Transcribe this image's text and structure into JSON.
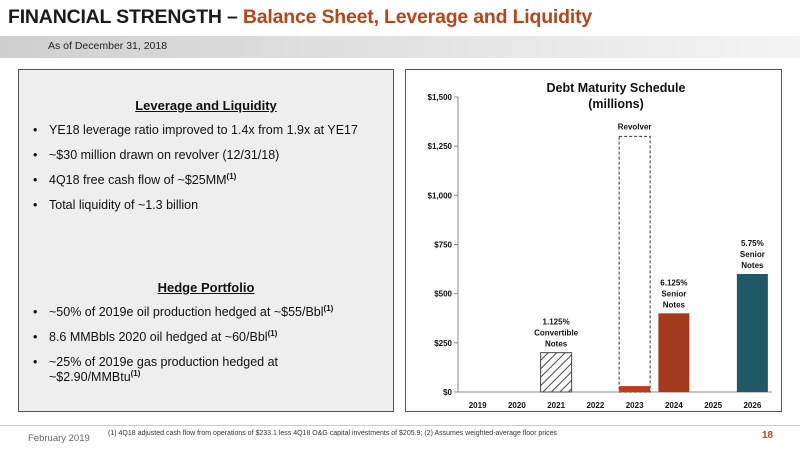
{
  "header": {
    "title_main": "FINANCIAL STRENGTH",
    "title_sep": "–",
    "title_accent": "Balance Sheet, Leverage and Liquidity",
    "as_of": "As of December 31, 2018"
  },
  "leverage": {
    "heading": "Leverage and Liquidity",
    "bullets": [
      {
        "text": "YE18 leverage ratio improved to 1.4x from 1.9x at YE17",
        "note": ""
      },
      {
        "text": "~$30 million drawn on revolver (12/31/18)",
        "note": ""
      },
      {
        "text": "4Q18 free cash flow of ~$25MM",
        "note": "(1)"
      },
      {
        "text": "Total liquidity of ~1.3 billion",
        "note": ""
      }
    ]
  },
  "hedge": {
    "heading": "Hedge Portfolio",
    "bullets": [
      {
        "text": "~50% of 2019e oil production hedged at ~$55/Bbl",
        "note": "(1)"
      },
      {
        "text": "8.6 MMBbls 2020 oil hedged at ~60/Bbl",
        "note": "(1)"
      },
      {
        "text": "~25% of 2019e gas production hedged at ~$2.90/MMBtu",
        "note": "(1)"
      }
    ]
  },
  "chart_data": {
    "type": "bar",
    "title": "Debt Maturity Schedule",
    "subtitle": "(millions)",
    "categories": [
      "2019",
      "2020",
      "2021",
      "2022",
      "2023",
      "2024",
      "2025",
      "2026"
    ],
    "ylim": [
      0,
      1500
    ],
    "yticks": [
      0,
      250,
      500,
      750,
      1000,
      1250,
      1500
    ],
    "ytick_labels": [
      "$0",
      "$250",
      "$500",
      "$750",
      "$1,000",
      "$1,250",
      "$1,500"
    ],
    "grid": false,
    "bars": [
      {
        "category": "2021",
        "value": 200,
        "label": [
          "1.125%",
          "Convertible",
          "Notes"
        ],
        "color": "#ffffff",
        "pattern": "hatch"
      },
      {
        "category": "2023",
        "value": 30,
        "label": [],
        "color": "#c0391b",
        "pattern": "solid"
      },
      {
        "category": "2024",
        "value": 400,
        "label": [
          "6.125%",
          "Senior",
          "Notes"
        ],
        "color": "#a33a1c",
        "pattern": "solid"
      },
      {
        "category": "2026",
        "value": 600,
        "label": [
          "5.75%",
          "Senior",
          "Notes"
        ],
        "color": "#215868",
        "pattern": "solid"
      }
    ],
    "revolver": {
      "category": "2023",
      "value": 1300,
      "label": "Revolver",
      "style": "dashed"
    }
  },
  "footer": {
    "date": "February 2019",
    "note": "(1)  4Q18 adjusted cash flow from operations of $233.1 less 4Q18 O&G capital investments of $205.9; (2) Assumes weighted-average floor prices",
    "page": "18"
  }
}
